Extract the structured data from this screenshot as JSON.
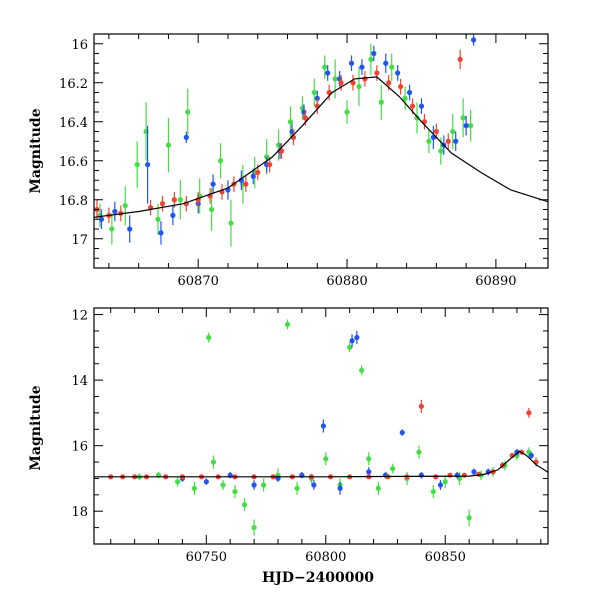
{
  "chart_data": [
    {
      "type": "scatter",
      "title": "",
      "xlabel": "",
      "ylabel": "Magnitude",
      "xlim": [
        60863,
        60893.5
      ],
      "ylim": [
        17.15,
        15.95
      ],
      "y_inverted": true,
      "xticks": [
        60870,
        60880,
        60890
      ],
      "yticks": [
        16,
        16.2,
        16.4,
        16.6,
        16.8,
        17
      ],
      "ytick_labels": [
        "16",
        "16.2",
        "16.4",
        "16.6",
        "16.8",
        "17"
      ],
      "legend": "none",
      "series": [
        {
          "color": "#44dd44",
          "points": [
            [
              60863.4,
              16.88,
              0.06
            ],
            [
              60864.2,
              16.95,
              0.08
            ],
            [
              60865.1,
              16.83,
              0.1
            ],
            [
              60865.9,
              16.62,
              0.12
            ],
            [
              60866.5,
              16.45,
              0.15
            ],
            [
              60867.3,
              16.9,
              0.08
            ],
            [
              60868.0,
              16.52,
              0.14
            ],
            [
              60868.8,
              16.8,
              0.1
            ],
            [
              60869.3,
              16.35,
              0.12
            ],
            [
              60870.1,
              16.78,
              0.09
            ],
            [
              60870.9,
              16.85,
              0.11
            ],
            [
              60871.5,
              16.6,
              0.09
            ],
            [
              60872.2,
              16.92,
              0.12
            ],
            [
              60873.0,
              16.72,
              0.1
            ],
            [
              60873.8,
              16.66,
              0.08
            ],
            [
              60874.6,
              16.58,
              0.09
            ],
            [
              60875.4,
              16.52,
              0.08
            ],
            [
              60876.2,
              16.4,
              0.08
            ],
            [
              60877.0,
              16.33,
              0.06
            ],
            [
              60877.8,
              16.25,
              0.07
            ],
            [
              60878.5,
              16.12,
              0.06
            ],
            [
              60879.2,
              16.18,
              0.1
            ],
            [
              60880.0,
              16.35,
              0.06
            ],
            [
              60880.8,
              16.22,
              0.1
            ],
            [
              60881.6,
              16.08,
              0.08
            ],
            [
              60882.3,
              16.3,
              0.09
            ],
            [
              60883.0,
              16.12,
              0.07
            ],
            [
              60883.9,
              16.28,
              0.06
            ],
            [
              60884.7,
              16.38,
              0.08
            ],
            [
              60885.5,
              16.5,
              0.06
            ],
            [
              60886.3,
              16.55,
              0.07
            ],
            [
              60887.1,
              16.45,
              0.09
            ],
            [
              60887.8,
              16.38,
              0.1
            ],
            [
              60888.3,
              16.42,
              0.08
            ]
          ]
        },
        {
          "color": "#2255ee",
          "points": [
            [
              60863.5,
              16.9,
              0.05
            ],
            [
              60864.4,
              16.86,
              0.05
            ],
            [
              60865.4,
              16.95,
              0.07
            ],
            [
              60866.6,
              16.62,
              0.2
            ],
            [
              60867.5,
              16.97,
              0.06
            ],
            [
              60868.3,
              16.88,
              0.05
            ],
            [
              60869.2,
              16.48,
              0.03
            ],
            [
              60870.0,
              16.82,
              0.05
            ],
            [
              60871.0,
              16.72,
              0.05
            ],
            [
              60872.0,
              16.75,
              0.05
            ],
            [
              60872.9,
              16.7,
              0.05
            ],
            [
              60873.7,
              16.68,
              0.04
            ],
            [
              60874.6,
              16.62,
              0.04
            ],
            [
              60875.5,
              16.55,
              0.04
            ],
            [
              60876.3,
              16.45,
              0.04
            ],
            [
              60877.1,
              16.35,
              0.04
            ],
            [
              60878.0,
              16.28,
              0.04
            ],
            [
              60878.7,
              16.15,
              0.04
            ],
            [
              60879.5,
              16.18,
              0.04
            ],
            [
              60880.3,
              16.1,
              0.04
            ],
            [
              60881.0,
              16.12,
              0.04
            ],
            [
              60881.8,
              16.05,
              0.04
            ],
            [
              60882.6,
              16.1,
              0.05
            ],
            [
              60883.4,
              16.15,
              0.04
            ],
            [
              60884.2,
              16.25,
              0.04
            ],
            [
              60885.0,
              16.32,
              0.04
            ],
            [
              60885.8,
              16.48,
              0.06
            ],
            [
              60886.5,
              16.52,
              0.05
            ],
            [
              60887.3,
              16.5,
              0.05
            ],
            [
              60888.0,
              16.42,
              0.05
            ],
            [
              60888.5,
              15.98,
              0.03
            ]
          ]
        },
        {
          "color": "#ee4433",
          "points": [
            [
              60863.2,
              16.85,
              0.05
            ],
            [
              60864.0,
              16.88,
              0.04
            ],
            [
              60864.8,
              16.87,
              0.04
            ],
            [
              60866.8,
              16.84,
              0.04
            ],
            [
              60867.6,
              16.82,
              0.04
            ],
            [
              60868.4,
              16.8,
              0.04
            ],
            [
              60869.2,
              16.82,
              0.04
            ],
            [
              60870.0,
              16.8,
              0.04
            ],
            [
              60870.8,
              16.78,
              0.04
            ],
            [
              60871.6,
              16.76,
              0.04
            ],
            [
              60872.4,
              16.72,
              0.04
            ],
            [
              60873.2,
              16.72,
              0.04
            ],
            [
              60874.0,
              16.66,
              0.04
            ],
            [
              60874.8,
              16.62,
              0.04
            ],
            [
              60875.6,
              16.55,
              0.04
            ],
            [
              60876.4,
              16.48,
              0.04
            ],
            [
              60877.2,
              16.38,
              0.04
            ],
            [
              60878.0,
              16.32,
              0.04
            ],
            [
              60878.8,
              16.25,
              0.04
            ],
            [
              60879.6,
              16.2,
              0.04
            ],
            [
              60880.4,
              16.2,
              0.04
            ],
            [
              60881.2,
              16.18,
              0.04
            ],
            [
              60882.0,
              16.15,
              0.04
            ],
            [
              60882.8,
              16.2,
              0.04
            ],
            [
              60883.6,
              16.22,
              0.04
            ],
            [
              60884.4,
              16.32,
              0.04
            ],
            [
              60885.2,
              16.4,
              0.04
            ],
            [
              60886.0,
              16.45,
              0.04
            ],
            [
              60886.8,
              16.5,
              0.04
            ],
            [
              60887.6,
              16.08,
              0.05
            ]
          ]
        }
      ],
      "model_curve": [
        [
          60863,
          16.89
        ],
        [
          60866,
          16.86
        ],
        [
          60869,
          16.82
        ],
        [
          60872,
          16.74
        ],
        [
          60875,
          16.58
        ],
        [
          60877,
          16.42
        ],
        [
          60879,
          16.25
        ],
        [
          60880.5,
          16.18
        ],
        [
          60882,
          16.17
        ],
        [
          60883.5,
          16.27
        ],
        [
          60885,
          16.4
        ],
        [
          60887,
          16.56
        ],
        [
          60889,
          16.66
        ],
        [
          60891,
          16.75
        ],
        [
          60893.5,
          16.81
        ]
      ]
    },
    {
      "type": "scatter",
      "title": "",
      "xlabel": "HJD−2400000",
      "ylabel": "Magnitude",
      "xlim": [
        60703,
        60893
      ],
      "ylim": [
        19.0,
        11.8
      ],
      "y_inverted": true,
      "xticks": [
        60750,
        60800,
        60850
      ],
      "yticks": [
        12,
        14,
        16,
        18
      ],
      "ytick_labels": [
        "12",
        "14",
        "16",
        "18"
      ],
      "legend": "none",
      "series": [
        {
          "color": "#44dd44",
          "points": [
            [
              60722,
              16.95,
              0.1
            ],
            [
              60730,
              16.9,
              0.1
            ],
            [
              60738,
              17.1,
              0.15
            ],
            [
              60745,
              17.3,
              0.2
            ],
            [
              60751,
              12.7,
              0.15
            ],
            [
              60753,
              16.5,
              0.2
            ],
            [
              60757,
              17.2,
              0.15
            ],
            [
              60762,
              17.4,
              0.2
            ],
            [
              60766,
              17.8,
              0.2
            ],
            [
              60770,
              18.5,
              0.25
            ],
            [
              60774,
              17.2,
              0.2
            ],
            [
              60780,
              16.9,
              0.2
            ],
            [
              60784,
              12.3,
              0.15
            ],
            [
              60788,
              17.3,
              0.2
            ],
            [
              60794,
              17.0,
              0.15
            ],
            [
              60800,
              16.4,
              0.2
            ],
            [
              60806,
              17.2,
              0.2
            ],
            [
              60810,
              13.0,
              0.15
            ],
            [
              60815,
              13.7,
              0.15
            ],
            [
              60818,
              16.4,
              0.2
            ],
            [
              60822,
              17.3,
              0.2
            ],
            [
              60828,
              16.7,
              0.15
            ],
            [
              60834,
              17.0,
              0.2
            ],
            [
              60839,
              16.2,
              0.2
            ],
            [
              60845,
              17.4,
              0.2
            ],
            [
              60850,
              17.1,
              0.2
            ],
            [
              60856,
              17.0,
              0.2
            ],
            [
              60860,
              18.2,
              0.25
            ],
            [
              60865,
              16.9,
              0.15
            ],
            [
              60870,
              16.8,
              0.15
            ],
            [
              60875,
              16.6,
              0.15
            ],
            [
              60880,
              16.3,
              0.15
            ],
            [
              60885,
              16.2,
              0.15
            ],
            [
              60888,
              16.5,
              0.15
            ]
          ]
        },
        {
          "color": "#2255ee",
          "points": [
            [
              60740,
              17.0,
              0.1
            ],
            [
              60750,
              17.1,
              0.1
            ],
            [
              60760,
              16.9,
              0.1
            ],
            [
              60770,
              17.2,
              0.15
            ],
            [
              60780,
              17.0,
              0.1
            ],
            [
              60790,
              16.9,
              0.1
            ],
            [
              60795,
              17.2,
              0.15
            ],
            [
              60799,
              15.4,
              0.2
            ],
            [
              60806,
              17.3,
              0.2
            ],
            [
              60811,
              12.8,
              0.2
            ],
            [
              60813,
              12.7,
              0.2
            ],
            [
              60818,
              16.8,
              0.15
            ],
            [
              60825,
              16.9,
              0.1
            ],
            [
              60832,
              15.6,
              0.1
            ],
            [
              60840,
              16.9,
              0.1
            ],
            [
              60848,
              17.2,
              0.15
            ],
            [
              60855,
              16.9,
              0.1
            ],
            [
              60862,
              16.8,
              0.1
            ],
            [
              60868,
              16.8,
              0.1
            ],
            [
              60874,
              16.6,
              0.1
            ],
            [
              60880,
              16.2,
              0.1
            ],
            [
              60886,
              16.3,
              0.1
            ]
          ]
        },
        {
          "color": "#ee4433",
          "points": [
            [
              60710,
              16.95,
              0.05
            ],
            [
              60715,
              16.95,
              0.05
            ],
            [
              60720,
              16.95,
              0.05
            ],
            [
              60725,
              16.95,
              0.05
            ],
            [
              60733,
              16.95,
              0.05
            ],
            [
              60740,
              16.95,
              0.05
            ],
            [
              60748,
              16.95,
              0.05
            ],
            [
              60755,
              16.95,
              0.05
            ],
            [
              60762,
              16.95,
              0.05
            ],
            [
              60770,
              16.95,
              0.05
            ],
            [
              60778,
              16.95,
              0.05
            ],
            [
              60786,
              16.95,
              0.05
            ],
            [
              60794,
              16.95,
              0.05
            ],
            [
              60802,
              16.95,
              0.05
            ],
            [
              60810,
              16.95,
              0.05
            ],
            [
              60818,
              16.95,
              0.05
            ],
            [
              60826,
              16.95,
              0.05
            ],
            [
              60834,
              16.95,
              0.05
            ],
            [
              60840,
              14.8,
              0.2
            ],
            [
              60846,
              16.95,
              0.05
            ],
            [
              60852,
              16.9,
              0.05
            ],
            [
              60858,
              16.9,
              0.05
            ],
            [
              60864,
              16.87,
              0.05
            ],
            [
              60870,
              16.8,
              0.05
            ],
            [
              60874,
              16.6,
              0.05
            ],
            [
              60878,
              16.3,
              0.05
            ],
            [
              60882,
              16.2,
              0.05
            ],
            [
              60885,
              15.0,
              0.15
            ],
            [
              60888,
              16.5,
              0.05
            ]
          ]
        }
      ],
      "model_curve": [
        [
          60703,
          16.95
        ],
        [
          60740,
          16.95
        ],
        [
          60800,
          16.95
        ],
        [
          60860,
          16.93
        ],
        [
          60866,
          16.88
        ],
        [
          60872,
          16.74
        ],
        [
          60877,
          16.42
        ],
        [
          60881,
          16.17
        ],
        [
          60884,
          16.3
        ],
        [
          60888,
          16.58
        ],
        [
          60893,
          16.81
        ]
      ]
    }
  ]
}
